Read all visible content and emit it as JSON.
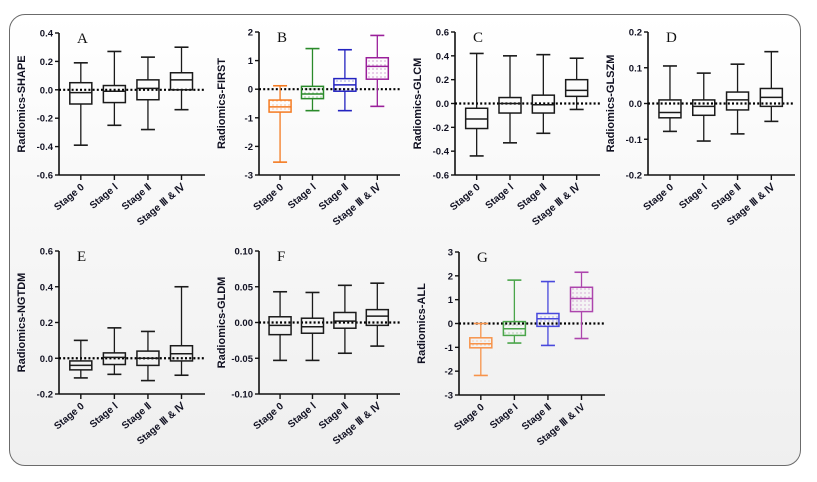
{
  "figure": {
    "background": "#f2f2f2",
    "border_color": "#6b6b6b"
  },
  "stage_colors": [
    "#f47a20",
    "#2a8a2a",
    "#2323c0",
    "#9a1f9a"
  ],
  "stage_colors_light": [
    "#f7934a",
    "#4aa54a",
    "#4848dc",
    "#ad45ad"
  ],
  "chart_data": [
    {
      "type": "box",
      "panel": "A",
      "title": "",
      "ylabel": "Radiomics-SHAPE",
      "xlabel": "",
      "categories": [
        "Stage 0",
        "Stage Ⅰ",
        "Stage Ⅱ",
        "Stage Ⅲ & Ⅳ"
      ],
      "ylim": [
        -0.6,
        0.4
      ],
      "yticks": [
        0.4,
        0.2,
        0.0,
        -0.2,
        -0.4,
        -0.6
      ],
      "ytick_labels": [
        "0.4",
        "0.2",
        "0.0",
        "-0.2",
        "-0.4",
        "-0.6"
      ],
      "reference_line": 0,
      "colored": false,
      "series": [
        {
          "name": "Stage 0",
          "max": 0.19,
          "q3": 0.05,
          "median": -0.02,
          "q1": -0.1,
          "min": -0.39
        },
        {
          "name": "Stage Ⅰ",
          "max": 0.27,
          "q3": 0.03,
          "median": -0.01,
          "q1": -0.09,
          "min": -0.25
        },
        {
          "name": "Stage Ⅱ",
          "max": 0.23,
          "q3": 0.07,
          "median": 0.01,
          "q1": -0.07,
          "min": -0.28
        },
        {
          "name": "Stage Ⅲ & Ⅳ",
          "max": 0.3,
          "q3": 0.12,
          "median": 0.07,
          "q1": 0.0,
          "min": -0.14
        }
      ]
    },
    {
      "type": "box",
      "panel": "B",
      "ylabel": "Radiomics-FIRST",
      "xlabel": "",
      "categories": [
        "Stage 0",
        "Stage Ⅰ",
        "Stage Ⅱ",
        "Stage Ⅲ & Ⅳ"
      ],
      "ylim": [
        -3,
        2
      ],
      "yticks": [
        2,
        1,
        0,
        -1,
        -2,
        -3
      ],
      "ytick_labels": [
        "2",
        "1",
        "0",
        "-1",
        "-2",
        "-3"
      ],
      "reference_line": 0,
      "colored": true,
      "series": [
        {
          "name": "Stage 0",
          "max": 0.12,
          "q3": -0.38,
          "median": -0.62,
          "q1": -0.8,
          "min": -2.55
        },
        {
          "name": "Stage Ⅰ",
          "max": 1.42,
          "q3": 0.1,
          "median": -0.17,
          "q1": -0.33,
          "min": -0.75
        },
        {
          "name": "Stage Ⅱ",
          "max": 1.38,
          "q3": 0.37,
          "median": 0.15,
          "q1": -0.07,
          "min": -0.75
        },
        {
          "name": "Stage Ⅲ & Ⅳ",
          "max": 1.88,
          "q3": 1.1,
          "median": 0.8,
          "q1": 0.35,
          "min": -0.6
        }
      ]
    },
    {
      "type": "box",
      "panel": "C",
      "ylabel": "Radiomics-GLCM",
      "xlabel": "",
      "categories": [
        "Stage 0",
        "Stage Ⅰ",
        "Stage Ⅱ",
        "Stage Ⅲ & Ⅳ"
      ],
      "ylim": [
        -0.6,
        0.6
      ],
      "yticks": [
        0.6,
        0.4,
        0.2,
        0.0,
        -0.2,
        -0.4,
        -0.6
      ],
      "ytick_labels": [
        "0.6",
        "0.4",
        "0.2",
        "0.0",
        "-0.2",
        "-0.4",
        "-0.6"
      ],
      "reference_line": 0,
      "colored": false,
      "series": [
        {
          "name": "Stage 0",
          "max": 0.42,
          "q3": -0.04,
          "median": -0.13,
          "q1": -0.21,
          "min": -0.44
        },
        {
          "name": "Stage Ⅰ",
          "max": 0.4,
          "q3": 0.05,
          "median": 0.0,
          "q1": -0.08,
          "min": -0.33
        },
        {
          "name": "Stage Ⅱ",
          "max": 0.41,
          "q3": 0.07,
          "median": -0.01,
          "q1": -0.08,
          "min": -0.25
        },
        {
          "name": "Stage Ⅲ & Ⅳ",
          "max": 0.38,
          "q3": 0.2,
          "median": 0.11,
          "q1": 0.06,
          "min": -0.05
        }
      ]
    },
    {
      "type": "box",
      "panel": "D",
      "ylabel": "Radiomics-GLSZM",
      "xlabel": "",
      "categories": [
        "Stage 0",
        "Stage Ⅰ",
        "Stage Ⅱ",
        "Stage Ⅲ & Ⅳ"
      ],
      "ylim": [
        -0.2,
        0.2
      ],
      "yticks": [
        0.2,
        0.1,
        0.0,
        -0.1,
        -0.2
      ],
      "ytick_labels": [
        "0.2",
        "0.1",
        "0.0",
        "-0.1",
        "-0.2"
      ],
      "reference_line": 0,
      "colored": false,
      "series": [
        {
          "name": "Stage 0",
          "max": 0.105,
          "q3": 0.01,
          "median": -0.025,
          "q1": -0.04,
          "min": -0.078
        },
        {
          "name": "Stage Ⅰ",
          "max": 0.085,
          "q3": 0.01,
          "median": -0.008,
          "q1": -0.033,
          "min": -0.105
        },
        {
          "name": "Stage Ⅱ",
          "max": 0.11,
          "q3": 0.032,
          "median": 0.01,
          "q1": -0.018,
          "min": -0.085
        },
        {
          "name": "Stage Ⅲ & Ⅳ",
          "max": 0.145,
          "q3": 0.042,
          "median": 0.017,
          "q1": -0.008,
          "min": -0.05
        }
      ]
    },
    {
      "type": "box",
      "panel": "E",
      "ylabel": "Radiomics-NGTDM",
      "xlabel": "",
      "categories": [
        "Stage 0",
        "Stage Ⅰ",
        "Stage Ⅱ",
        "Stage Ⅲ & Ⅳ"
      ],
      "ylim": [
        -0.2,
        0.6
      ],
      "yticks": [
        0.6,
        0.4,
        0.2,
        0.0,
        -0.2
      ],
      "ytick_labels": [
        "0.6",
        "0.4",
        "0.2",
        "0.0",
        "-0.2"
      ],
      "reference_line": 0,
      "colored": false,
      "series": [
        {
          "name": "Stage 0",
          "max": 0.1,
          "q3": -0.015,
          "median": -0.04,
          "q1": -0.065,
          "min": -0.11
        },
        {
          "name": "Stage Ⅰ",
          "max": 0.17,
          "q3": 0.03,
          "median": 0.005,
          "q1": -0.035,
          "min": -0.09
        },
        {
          "name": "Stage Ⅱ",
          "max": 0.15,
          "q3": 0.04,
          "median": 0.0,
          "q1": -0.04,
          "min": -0.125
        },
        {
          "name": "Stage Ⅲ & Ⅳ",
          "max": 0.4,
          "q3": 0.07,
          "median": 0.025,
          "q1": -0.015,
          "min": -0.095
        }
      ]
    },
    {
      "type": "box",
      "panel": "F",
      "ylabel": "Radiomics-GLDM",
      "xlabel": "",
      "categories": [
        "Stage 0",
        "Stage Ⅰ",
        "Stage Ⅱ",
        "Stage Ⅲ & Ⅳ"
      ],
      "ylim": [
        -0.1,
        0.1
      ],
      "yticks": [
        0.1,
        0.05,
        0.0,
        -0.05,
        -0.1
      ],
      "ytick_labels": [
        "0.10",
        "0.05",
        "0.00",
        "-0.05",
        "-0.10"
      ],
      "reference_line": 0,
      "colored": false,
      "series": [
        {
          "name": "Stage 0",
          "max": 0.043,
          "q3": 0.008,
          "median": -0.004,
          "q1": -0.017,
          "min": -0.053
        },
        {
          "name": "Stage Ⅰ",
          "max": 0.042,
          "q3": 0.006,
          "median": -0.006,
          "q1": -0.015,
          "min": -0.053
        },
        {
          "name": "Stage Ⅱ",
          "max": 0.052,
          "q3": 0.014,
          "median": 0.002,
          "q1": -0.008,
          "min": -0.043
        },
        {
          "name": "Stage Ⅲ & Ⅳ",
          "max": 0.055,
          "q3": 0.018,
          "median": 0.009,
          "q1": -0.004,
          "min": -0.033
        }
      ]
    },
    {
      "type": "box",
      "panel": "G",
      "ylabel": "Radiomics-ALL",
      "xlabel": "",
      "categories": [
        "Stage 0",
        "Stage I",
        "Stage Ⅱ",
        "Stage Ⅲ & IV"
      ],
      "ylim": [
        -3,
        3
      ],
      "yticks": [
        3,
        2,
        1,
        0,
        -1,
        -2,
        -3
      ],
      "ytick_labels": [
        "3",
        "2",
        "1",
        "0",
        "-1",
        "-2",
        "-3"
      ],
      "reference_line": 0,
      "colored": true,
      "light_colors": true,
      "series": [
        {
          "name": "Stage 0",
          "max": 0.0,
          "q3": -0.6,
          "median": -0.85,
          "q1": -1.02,
          "min": -2.18
        },
        {
          "name": "Stage I",
          "max": 1.82,
          "q3": 0.08,
          "median": -0.22,
          "q1": -0.5,
          "min": -0.82
        },
        {
          "name": "Stage Ⅱ",
          "max": 1.76,
          "q3": 0.42,
          "median": 0.2,
          "q1": -0.12,
          "min": -0.92
        },
        {
          "name": "Stage Ⅲ & IV",
          "max": 2.15,
          "q3": 1.52,
          "median": 1.05,
          "q1": 0.5,
          "min": -0.63
        }
      ]
    }
  ]
}
